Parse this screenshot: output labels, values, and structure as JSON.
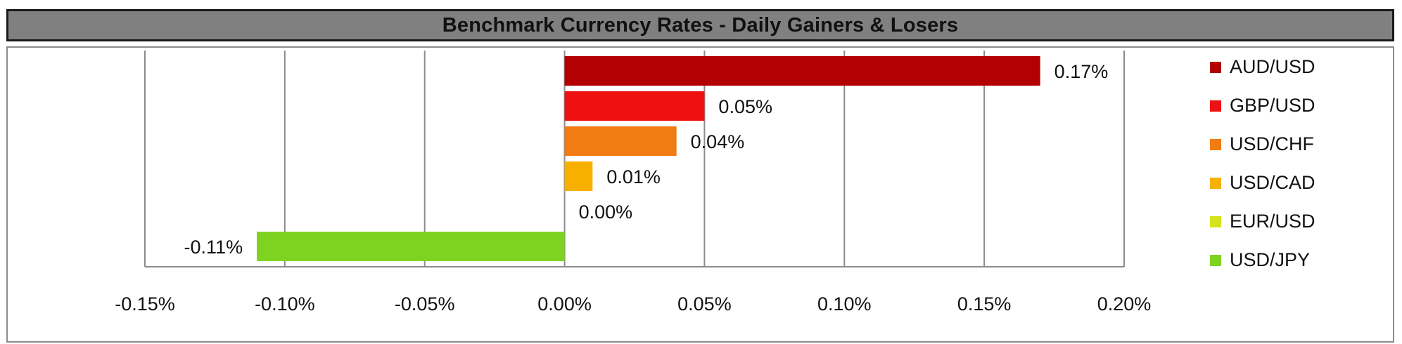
{
  "chart_data": {
    "type": "bar",
    "orientation": "horizontal",
    "title": "Benchmark Currency Rates - Daily Gainers & Losers",
    "xlabel": "",
    "ylabel": "",
    "xlim": [
      -0.15,
      0.2
    ],
    "x_ticks": [
      -0.15,
      -0.1,
      -0.05,
      0.0,
      0.05,
      0.1,
      0.15,
      0.2
    ],
    "x_tick_labels": [
      "-0.15%",
      "-0.10%",
      "-0.05%",
      "0.00%",
      "0.05%",
      "0.10%",
      "0.15%",
      "0.20%"
    ],
    "value_unit": "percent",
    "grid": "vertical major gridlines",
    "legend_position": "right",
    "categories": [
      "AUD/USD",
      "GBP/USD",
      "USD/CHF",
      "USD/CAD",
      "EUR/USD",
      "USD/JPY"
    ],
    "values": [
      0.17,
      0.05,
      0.04,
      0.01,
      0.0,
      -0.11
    ],
    "data_labels": [
      "0.17%",
      "0.05%",
      "0.04%",
      "0.01%",
      "0.00%",
      "-0.11%"
    ],
    "colors": [
      "#b30000",
      "#ee1111",
      "#f07c12",
      "#f7b000",
      "#d4e41c",
      "#7ed321"
    ]
  }
}
